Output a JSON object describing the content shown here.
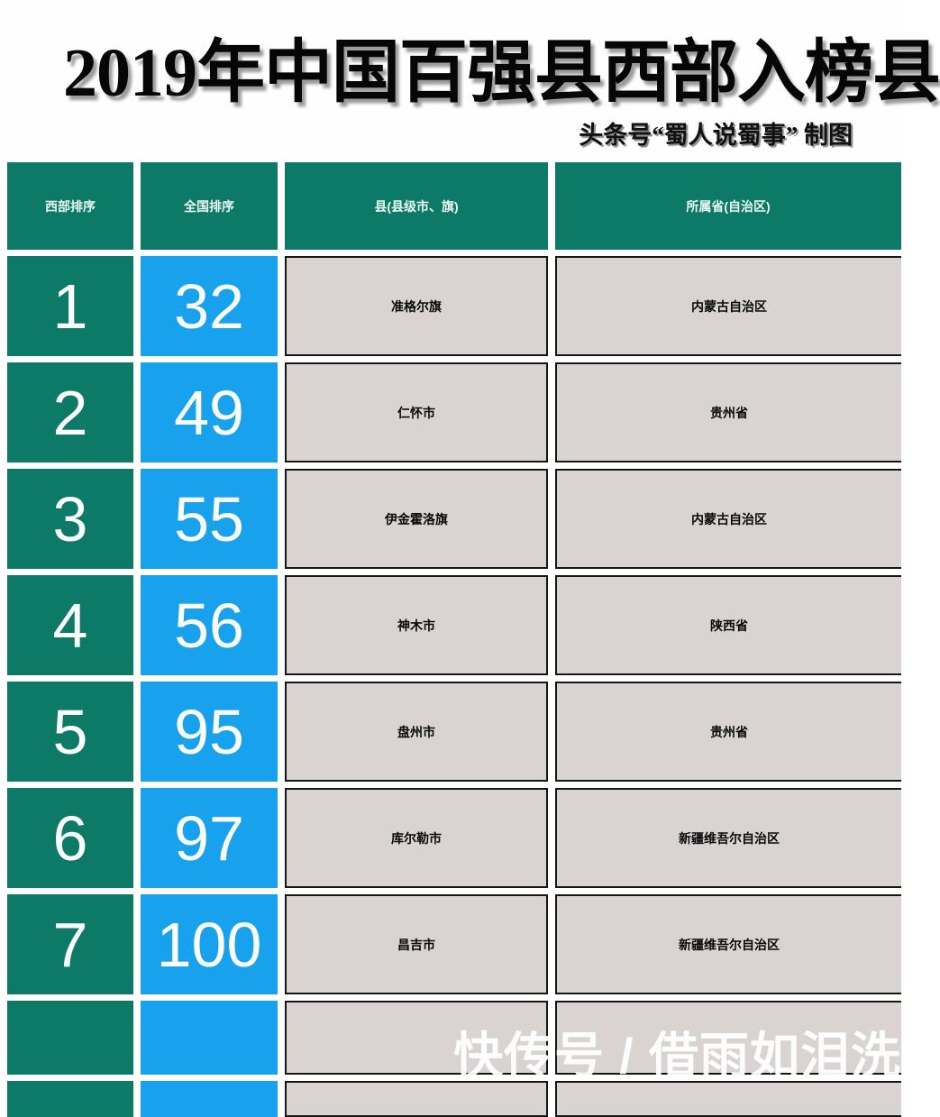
{
  "page": {
    "title": "2019年中国百强县西部入榜县",
    "credit": "头条号“蜀人说蜀事” 制图",
    "watermark": "快传号 / 借雨如泪洗"
  },
  "colors": {
    "teal": "#0d7a68",
    "blue": "#18a2ee",
    "gray": "#d9d3d2",
    "header_text": "#eaf7f0",
    "num_text": "#fbfefd",
    "cell_text": "#0a0a0a"
  },
  "chart_data": {
    "type": "table",
    "title": "2019年中国百强县西部入榜县",
    "columns": [
      "西部排序",
      "全国排序",
      "县(县级市、旗)",
      "所属省(自治区)"
    ],
    "rows": [
      [
        "1",
        "32",
        "准格尔旗",
        "内蒙古自治区"
      ],
      [
        "2",
        "49",
        "仁怀市",
        "贵州省"
      ],
      [
        "3",
        "55",
        "伊金霍洛旗",
        "内蒙古自治区"
      ],
      [
        "4",
        "56",
        "神木市",
        "陕西省"
      ],
      [
        "5",
        "95",
        "盘州市",
        "贵州省"
      ],
      [
        "6",
        "97",
        "库尔勒市",
        "新疆维吾尔自治区"
      ],
      [
        "7",
        "100",
        "昌吉市",
        "新疆维吾尔自治区"
      ]
    ],
    "trailing_empty_rows": 2,
    "column_keys": [
      "west-rank",
      "national-rank",
      "county",
      "province"
    ]
  }
}
